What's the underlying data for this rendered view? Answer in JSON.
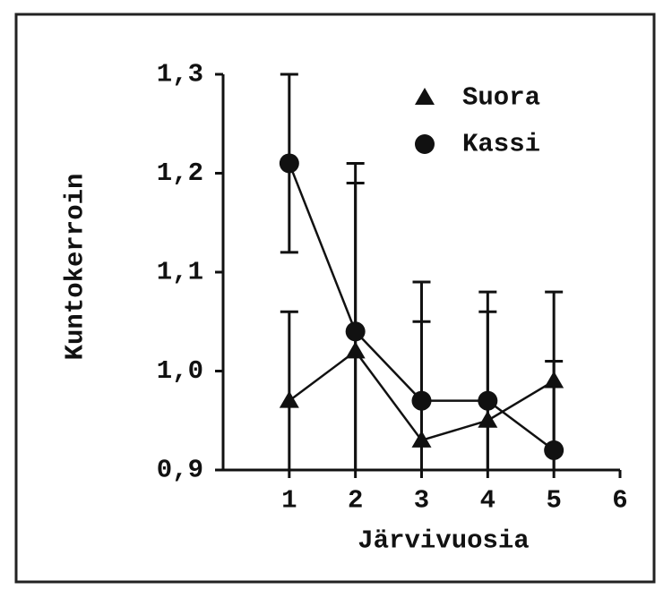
{
  "chart_data": {
    "type": "line",
    "x_label": "Järvivuosia",
    "y_label": "Kuntokerroin",
    "x": [
      1,
      2,
      3,
      4,
      5
    ],
    "series": [
      {
        "name": "Suora",
        "color": "#111111",
        "marker": "triangle",
        "values": [
          0.97,
          1.02,
          0.93,
          0.95,
          0.99
        ],
        "errors": [
          0.09,
          0.17,
          0.12,
          0.11,
          0.09
        ]
      },
      {
        "name": "Kassi",
        "color": "#111111",
        "marker": "circle",
        "values": [
          1.21,
          1.04,
          0.97,
          0.97,
          0.92
        ],
        "errors": [
          0.09,
          0.17,
          0.12,
          0.11,
          0.09
        ]
      }
    ],
    "xlim": [
      0,
      6
    ],
    "xticks": [
      1,
      2,
      3,
      4,
      5,
      6
    ],
    "ylim": [
      0.9,
      1.3
    ],
    "yticks": [
      {
        "value": 0.9,
        "label": "0,9"
      },
      {
        "value": 1.0,
        "label": "1,0"
      },
      {
        "value": 1.1,
        "label": "1,1"
      },
      {
        "value": 1.2,
        "label": "1,2"
      },
      {
        "value": 1.3,
        "label": "1,3"
      }
    ],
    "grid": false,
    "legend": "upper right"
  }
}
